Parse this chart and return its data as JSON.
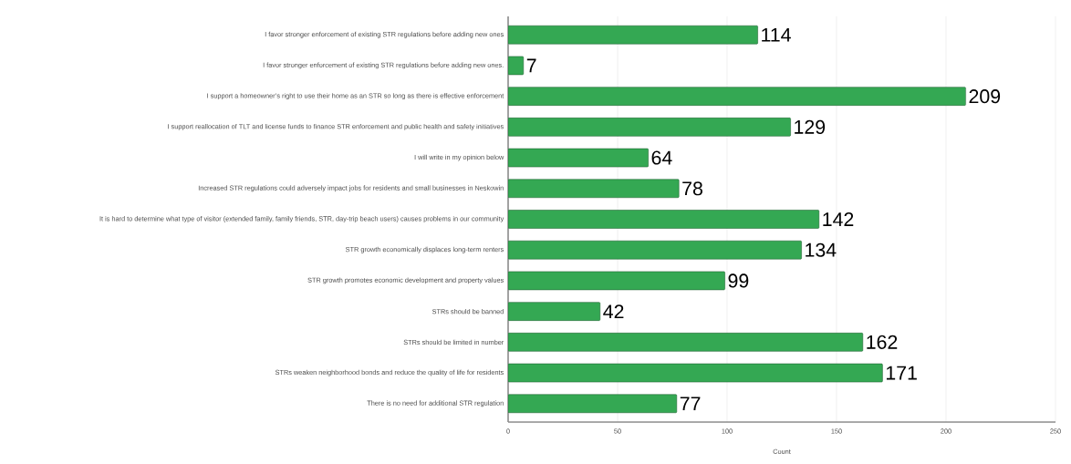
{
  "chart_data": {
    "type": "bar",
    "orientation": "horizontal",
    "xlabel": "Count",
    "categories": [
      "I favor stronger enforcement of existing STR regulations before adding new ones",
      "I favor stronger enforcement of existing STR regulations before adding new ones.",
      "I support a homeowner’s right to use their home as an STR so long as there is effective enforcement",
      "I support reallocation of TLT and license funds to finance STR enforcement and public health and safety initiatives",
      "I will write in my opinion below",
      "Increased STR regulations could adversely impact jobs for residents and small businesses in Neskowin",
      "It is hard to determine what type of visitor (extended family, family friends, STR, day-trip beach users) causes problems in our community",
      "STR growth economically displaces long-term renters",
      "STR growth promotes economic development and property values",
      "STRs should be banned",
      "STRs should be limited in number",
      "STRs weaken neighborhood bonds and reduce the quality of life for residents",
      "There is no need for additional STR regulation"
    ],
    "values": [
      114,
      7,
      209,
      129,
      64,
      78,
      142,
      134,
      99,
      42,
      162,
      171,
      77
    ],
    "color": "#34a853",
    "data_labels": true,
    "xlim": [
      0,
      250
    ],
    "xticks": [
      0,
      50,
      100,
      150,
      200,
      250
    ],
    "grid": "x"
  }
}
